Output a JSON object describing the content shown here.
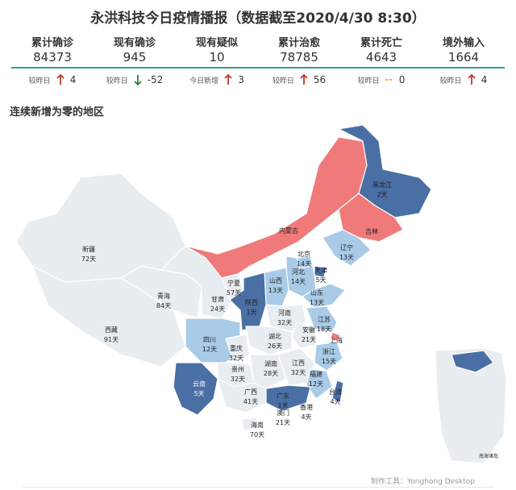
{
  "title": "永洪科技今日疫情播报（数据截至2020/4/30 8:30）",
  "kpis": [
    {
      "label": "累计确诊",
      "value": "84373",
      "cap": "较昨日",
      "dir": "up",
      "delta": "4"
    },
    {
      "label": "现有确诊",
      "value": "945",
      "cap": "较昨日",
      "dir": "down",
      "delta": "-52"
    },
    {
      "label": "现有疑似",
      "value": "10",
      "cap": "今日新增",
      "dir": "up",
      "delta": "3"
    },
    {
      "label": "累计治愈",
      "value": "78785",
      "cap": "较昨日",
      "dir": "up",
      "delta": "56"
    },
    {
      "label": "累计死亡",
      "value": "4643",
      "cap": "较昨日",
      "dir": "flat",
      "delta": "0"
    },
    {
      "label": "境外输入",
      "value": "1664",
      "cap": "较昨日",
      "dir": "up",
      "delta": "4"
    }
  ],
  "section_title": "连续新增为零的地区",
  "map": {
    "colors": {
      "long": "#e8edf2",
      "medium": "#a9cbe8",
      "short": "#4a6fa5",
      "new": "#f07a7a",
      "border": "#ffffff"
    },
    "regions": [
      {
        "name": "新疆",
        "days": "72天"
      },
      {
        "name": "西藏",
        "days": "91天"
      },
      {
        "name": "青海",
        "days": "84天"
      },
      {
        "name": "甘肃",
        "days": "24天"
      },
      {
        "name": "宁夏",
        "days": "57天"
      },
      {
        "name": "内蒙古",
        "days": ""
      },
      {
        "name": "黑龙江",
        "days": "2天"
      },
      {
        "name": "吉林",
        "days": ""
      },
      {
        "name": "辽宁",
        "days": "13天"
      },
      {
        "name": "北京",
        "days": "14天"
      },
      {
        "name": "天津",
        "days": "5天"
      },
      {
        "name": "河北",
        "days": "14天"
      },
      {
        "name": "山西",
        "days": "13天"
      },
      {
        "name": "山东",
        "days": "13天"
      },
      {
        "name": "陕西",
        "days": "1天"
      },
      {
        "name": "河南",
        "days": "32天"
      },
      {
        "name": "江苏",
        "days": "18天"
      },
      {
        "name": "安徽",
        "days": "21天"
      },
      {
        "name": "上海",
        "days": ""
      },
      {
        "name": "四川",
        "days": "12天"
      },
      {
        "name": "重庆",
        "days": "32天"
      },
      {
        "name": "湖北",
        "days": "26天"
      },
      {
        "name": "浙江",
        "days": "15天"
      },
      {
        "name": "贵州",
        "days": "32天"
      },
      {
        "name": "湖南",
        "days": "28天"
      },
      {
        "name": "江西",
        "days": "32天"
      },
      {
        "name": "福建",
        "days": "12天"
      },
      {
        "name": "云南",
        "days": "5天"
      },
      {
        "name": "广西",
        "days": "41天"
      },
      {
        "name": "广东",
        "days": "1天"
      },
      {
        "name": "台湾",
        "days": "4天"
      },
      {
        "name": "香港",
        "days": "4天"
      },
      {
        "name": "澳门",
        "days": "21天"
      },
      {
        "name": "海南",
        "days": "70天"
      }
    ],
    "inset_label": "南海诸岛"
  },
  "footer": "制作工具：Yonghong Desktop"
}
